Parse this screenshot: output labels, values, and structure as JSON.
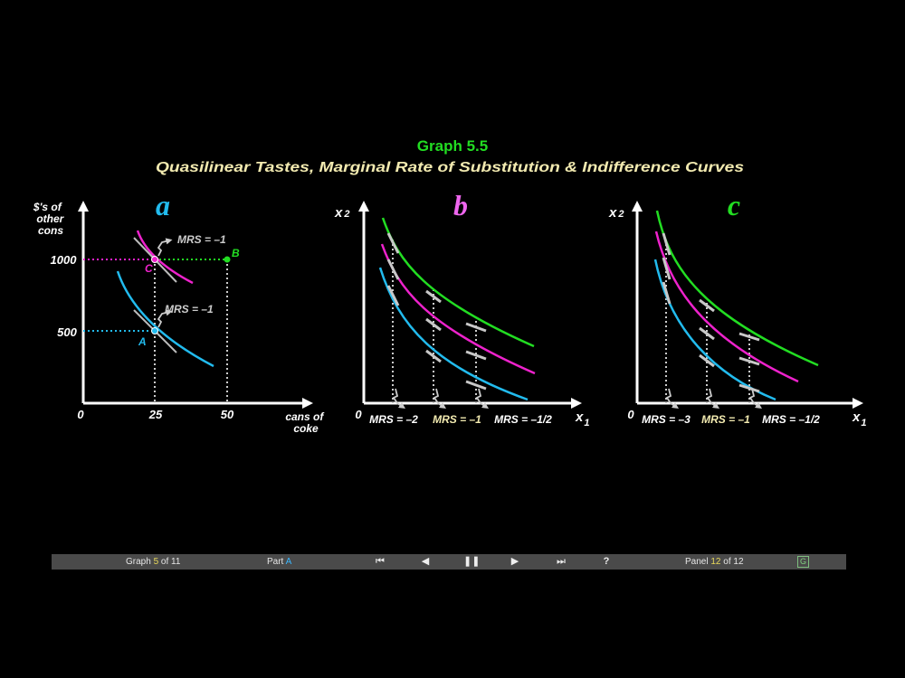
{
  "title": "Graph 5.5",
  "subtitle": "Quasilinear Tastes, Marginal Rate of Substitution & Indifference Curves",
  "colors": {
    "green": "#22dd22",
    "magenta": "#ee22cc",
    "cyan": "#22bbee",
    "title_yellow": "#f2eab0",
    "gray": "#cccccc"
  },
  "panel_a": {
    "letter": "a",
    "ylabel": "$'s of other cons",
    "xlabel": "cans of coke",
    "origin": "0",
    "x_ticks": [
      "25",
      "50"
    ],
    "y_ticks": [
      "500",
      "1000"
    ],
    "point_A": "A",
    "point_B": "B",
    "point_C": "C",
    "mrs_upper": "MRS = –1",
    "mrs_lower": "MRS = –1"
  },
  "panel_b": {
    "letter": "b",
    "ylabel": "x",
    "ylabel_sub": "2",
    "xlabel": "x",
    "xlabel_sub": "1",
    "origin": "0",
    "mrs": [
      "MRS = –2",
      "MRS = –1",
      "MRS = –1/2"
    ]
  },
  "panel_c": {
    "letter": "c",
    "ylabel": "x",
    "ylabel_sub": "2",
    "xlabel": "x",
    "xlabel_sub": "1",
    "origin": "0",
    "mrs": [
      "MRS = –3",
      "MRS = –1",
      "MRS = –1/2"
    ]
  },
  "nav": {
    "graph_prefix": "Graph ",
    "graph_num": "5",
    "graph_suffix": " of 11",
    "part_prefix": "Part ",
    "part": "A",
    "panel_prefix": "Panel ",
    "panel_num": "12",
    "panel_suffix": " of 12",
    "help": "?",
    "g": "G",
    "first_icon": "first-icon",
    "prev_icon": "prev-icon",
    "pause_icon": "pause-icon",
    "next_icon": "next-icon",
    "last_icon": "last-icon"
  }
}
